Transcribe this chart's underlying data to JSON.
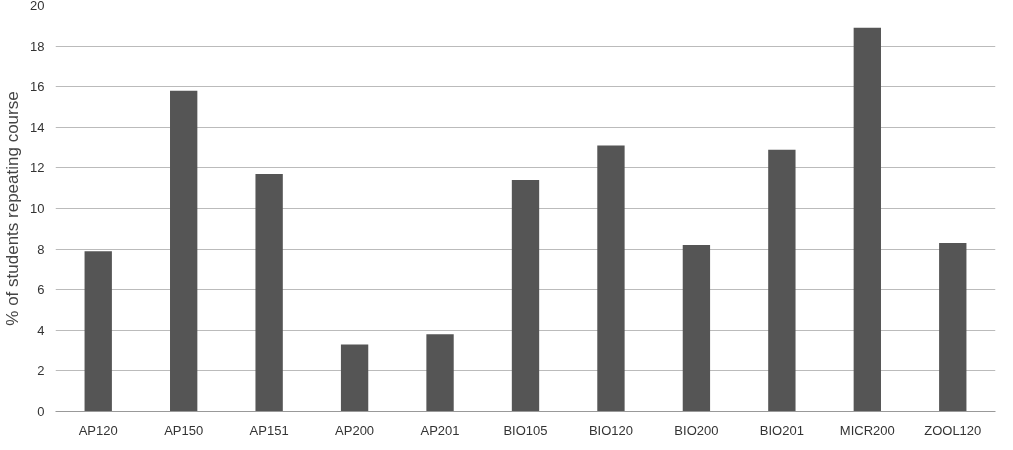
{
  "chart_data": {
    "type": "bar",
    "ylabel": "% of students repeating course",
    "categories": [
      "AP120",
      "AP150",
      "AP151",
      "AP200",
      "AP201",
      "BIO105",
      "BIO120",
      "BIO200",
      "BIO201",
      "MICR200",
      "ZOOL120"
    ],
    "values": [
      7.9,
      15.8,
      11.7,
      3.3,
      3.8,
      11.4,
      13.1,
      8.2,
      12.9,
      18.9,
      8.3
    ],
    "color": "#555555",
    "ylim": [
      0,
      20
    ],
    "yticks": [
      0,
      2,
      4,
      6,
      8,
      10,
      12,
      14,
      16,
      18,
      20
    ],
    "grid": "y"
  }
}
